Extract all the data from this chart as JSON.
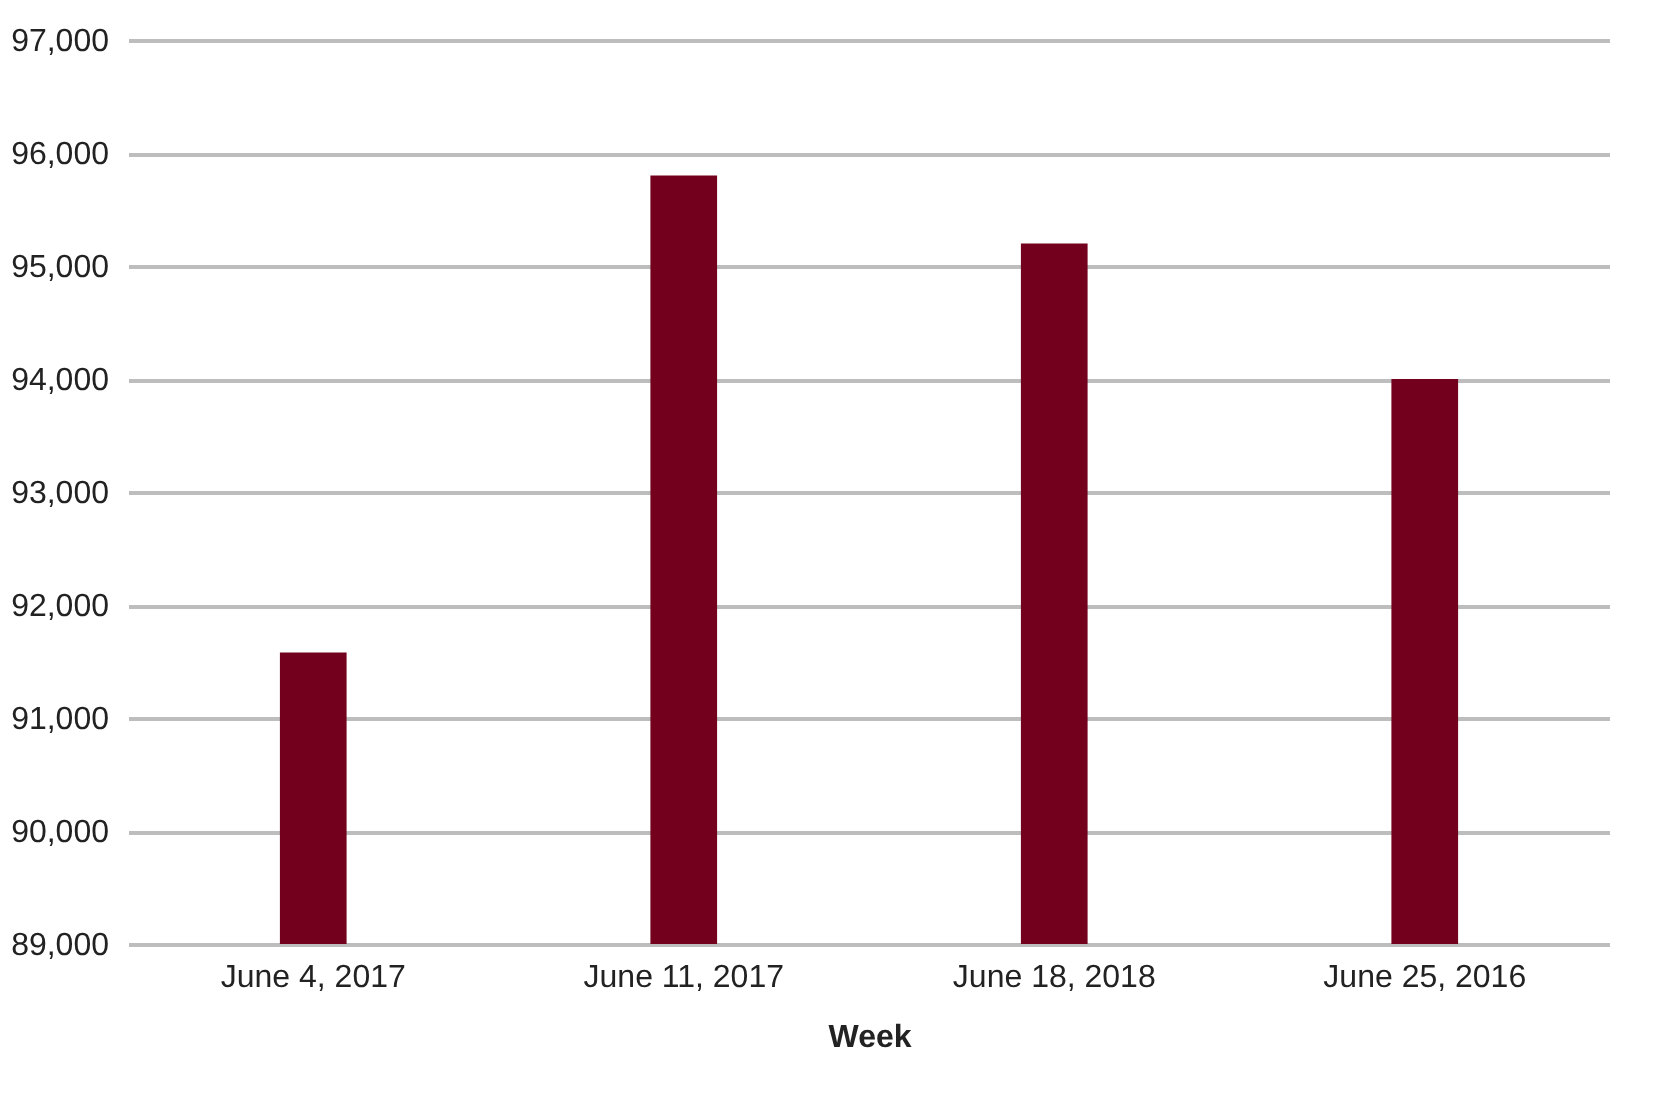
{
  "chart_data": {
    "type": "bar",
    "xlabel": "Week",
    "categories": [
      "June 4, 2017",
      "June 11, 2017",
      "June 18, 2018",
      "June 25, 2016"
    ],
    "values": [
      91580,
      95800,
      95200,
      94000
    ],
    "color": "#73001c",
    "ylim": [
      89000,
      97000
    ],
    "yticks": [
      {
        "value": 89000,
        "label": "89,000"
      },
      {
        "value": 90000,
        "label": "90,000"
      },
      {
        "value": 91000,
        "label": "91,000"
      },
      {
        "value": 92000,
        "label": "92,000"
      },
      {
        "value": 93000,
        "label": "93,000"
      },
      {
        "value": 94000,
        "label": "94,000"
      },
      {
        "value": 95000,
        "label": "95,000"
      },
      {
        "value": 96000,
        "label": "96,000"
      },
      {
        "value": 97000,
        "label": "97,000"
      }
    ],
    "grid": "y"
  }
}
